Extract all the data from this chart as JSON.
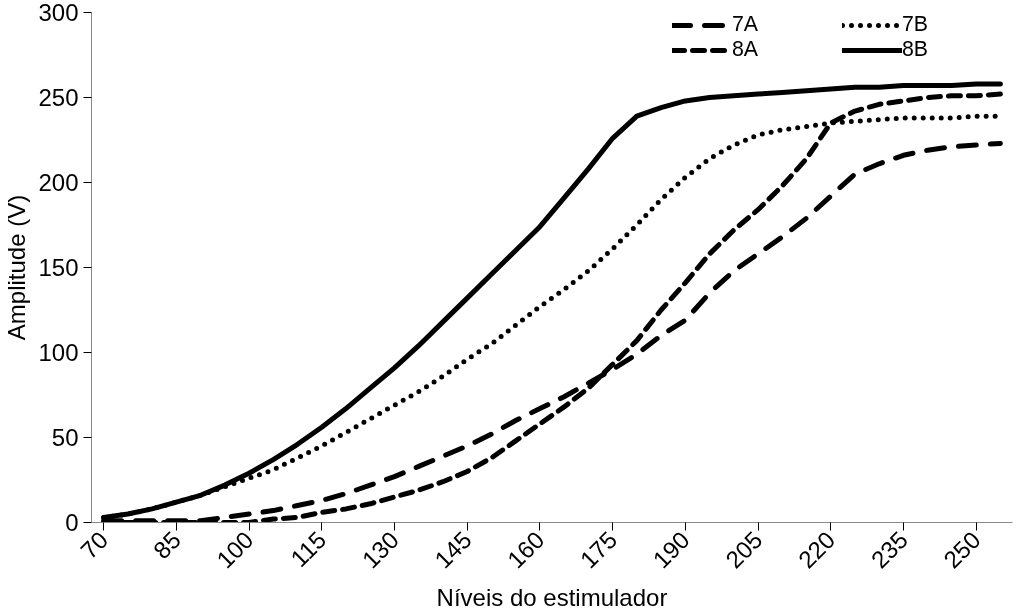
{
  "chart_data": {
    "type": "line",
    "xlabel": "Níveis do estimulador",
    "ylabel": "Amplitude (V)",
    "x": [
      70,
      75,
      80,
      85,
      90,
      95,
      100,
      105,
      110,
      115,
      120,
      125,
      130,
      135,
      140,
      145,
      150,
      155,
      160,
      165,
      170,
      175,
      180,
      185,
      190,
      195,
      200,
      205,
      210,
      215,
      220,
      225,
      230,
      235,
      240,
      245,
      250,
      255
    ],
    "xlim": [
      67.5,
      257.5
    ],
    "xticks": [
      70,
      85,
      100,
      115,
      130,
      145,
      160,
      175,
      190,
      205,
      220,
      235,
      250
    ],
    "ylim": [
      0,
      300
    ],
    "yticks": [
      0,
      50,
      100,
      150,
      200,
      250,
      300
    ],
    "grid": false,
    "legend": "top right",
    "series": [
      {
        "name": "7A",
        "color": "#000000",
        "line_style": "dashed",
        "values": [
          1,
          1,
          1,
          1,
          1,
          3,
          5,
          7,
          10,
          13,
          17,
          22,
          27,
          33,
          39,
          45,
          52,
          60,
          67,
          74,
          82,
          90,
          99,
          110,
          119,
          135,
          148,
          158,
          168,
          179,
          192,
          205,
          211,
          216,
          219,
          221,
          222,
          223
        ]
      },
      {
        "name": "7B",
        "color": "#000000",
        "line_style": "dotted",
        "values": [
          3,
          5,
          8,
          12,
          16,
          21,
          26,
          31,
          38,
          45,
          53,
          61,
          69,
          77,
          86,
          96,
          105,
          116,
          127,
          137,
          148,
          161,
          175,
          190,
          203,
          214,
          222,
          228,
          231,
          233,
          235,
          236,
          237,
          238,
          238,
          238,
          239,
          239
        ]
      },
      {
        "name": "8A",
        "color": "#000000",
        "line_style": "dashed",
        "values": [
          0,
          0,
          0,
          0,
          0,
          0,
          0,
          2,
          3,
          6,
          8,
          11,
          15,
          19,
          24,
          30,
          38,
          48,
          58,
          68,
          79,
          93,
          107,
          125,
          141,
          158,
          172,
          184,
          198,
          214,
          235,
          242,
          246,
          248,
          250,
          251,
          251,
          252
        ]
      },
      {
        "name": "8B",
        "color": "#000000",
        "line_style": "solid",
        "values": [
          3,
          5,
          8,
          12,
          16,
          22,
          29,
          37,
          46,
          56,
          67,
          79,
          91,
          104,
          118,
          132,
          146,
          160,
          174,
          191,
          208,
          226,
          239,
          244,
          248,
          250,
          251,
          252,
          253,
          254,
          255,
          256,
          256,
          257,
          257,
          257,
          258,
          258
        ]
      }
    ]
  }
}
